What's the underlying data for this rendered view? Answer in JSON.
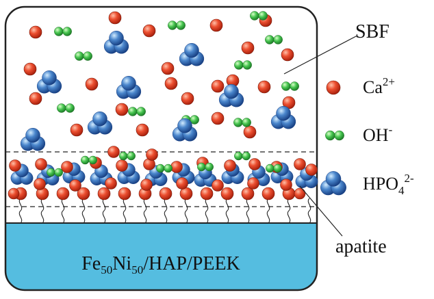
{
  "labels": {
    "sbf": "SBF",
    "apatite": "apatite",
    "substrate": "Fe50Ni50/HAP/PEEK"
  },
  "legend": [
    {
      "key": "ca",
      "label": "Ca",
      "sup": "2+",
      "sub": ""
    },
    {
      "key": "oh",
      "label": "OH",
      "sup": "-",
      "sub": ""
    },
    {
      "key": "hpo4",
      "label": "HPO",
      "sub": "4",
      "sup": "2-"
    }
  ],
  "substrate_parts": [
    {
      "text": "Fe",
      "type": "normal"
    },
    {
      "text": "50",
      "type": "sub"
    },
    {
      "text": "Ni",
      "type": "normal"
    },
    {
      "text": "50",
      "type": "sub"
    },
    {
      "text": "/HAP/PEEK",
      "type": "normal"
    }
  ],
  "colors": {
    "ca_ion": "#e8452a",
    "oh_ion": "#3fbf4a",
    "hpo4_ion": "#3d6fb8",
    "substrate": "#55bde0",
    "container_outline": "#222222"
  }
}
